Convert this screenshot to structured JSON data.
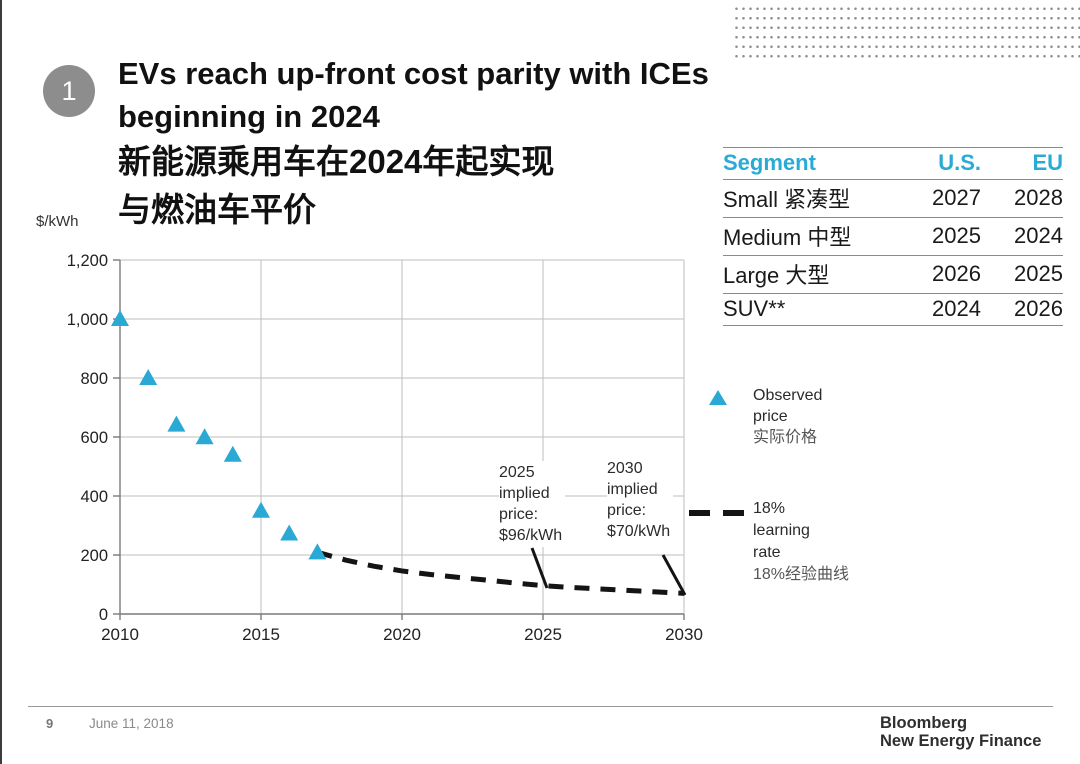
{
  "slide": {
    "badge": "1",
    "title": {
      "line1": "EVs reach up-front cost parity with ICEs",
      "line2": "beginning in 2024",
      "line3": "新能源乘用车在2024年起实现",
      "line4": "与燃油车平价"
    }
  },
  "parity_table": {
    "headers": [
      "Segment",
      "U.S.",
      "EU"
    ],
    "rows": [
      {
        "segment": "Small 紧凑型",
        "us": "2027",
        "eu": "2028"
      },
      {
        "segment": "Medium 中型",
        "us": "2025",
        "eu": "2024"
      },
      {
        "segment": "Large 大型",
        "us": "2026",
        "eu": "2025"
      },
      {
        "segment": "SUV**",
        "us": "2024",
        "eu": "2026"
      }
    ]
  },
  "chart_data": {
    "type": "scatter",
    "title": "",
    "xlabel": "",
    "ylabel": "$/kWh",
    "ylim": [
      0,
      1200
    ],
    "xlim": [
      2010,
      2030
    ],
    "y_ticks": [
      0,
      200,
      400,
      600,
      800,
      1000,
      1200
    ],
    "x_ticks": [
      2010,
      2015,
      2020,
      2025,
      2030
    ],
    "grid": true,
    "legend_position": "right",
    "series": [
      {
        "name": "Observed price 实际价格",
        "type": "scatter",
        "marker": "triangle",
        "color": "#29a9d4",
        "x": [
          2010,
          2011,
          2012,
          2013,
          2014,
          2015,
          2016,
          2017
        ],
        "values": [
          1000,
          800,
          642,
          599,
          540,
          350,
          273,
          209
        ]
      },
      {
        "name": "18% learning rate 18%经验曲线",
        "type": "line",
        "style": "dashed",
        "color": "#141414",
        "x": [
          2017,
          2018,
          2019,
          2020,
          2021,
          2022,
          2023,
          2024,
          2025,
          2026,
          2027,
          2028,
          2029,
          2030
        ],
        "values": [
          209,
          183,
          162,
          146,
          134,
          124,
          115,
          105,
          96,
          90,
          85,
          80,
          75,
          70
        ]
      }
    ],
    "annotations": [
      {
        "lines": [
          "2025",
          "implied",
          "price:",
          "$96/kWh"
        ],
        "anchor_year": 2025,
        "anchor_value": 96
      },
      {
        "lines": [
          "2030",
          "implied",
          "price:",
          "$70/kWh"
        ],
        "anchor_year": 2030,
        "anchor_value": 70
      }
    ],
    "legend": [
      {
        "marker": "triangle",
        "lines_en": [
          "Observed",
          "price"
        ],
        "line_zh": "实际价格"
      },
      {
        "marker": "dashed-line",
        "lines_en": [
          "18%",
          "learning",
          "rate"
        ],
        "line_zh": "18%经验曲线"
      }
    ]
  },
  "footer": {
    "page_number": "9",
    "date": "June 11, 2018",
    "brand_line1": "Bloomberg",
    "brand_line2": "New Energy Finance"
  },
  "colors": {
    "accent_cyan": "#29a9d4",
    "dashed_black": "#141414",
    "gridline": "#bdbdbd",
    "axis": "#7a7a7a"
  }
}
